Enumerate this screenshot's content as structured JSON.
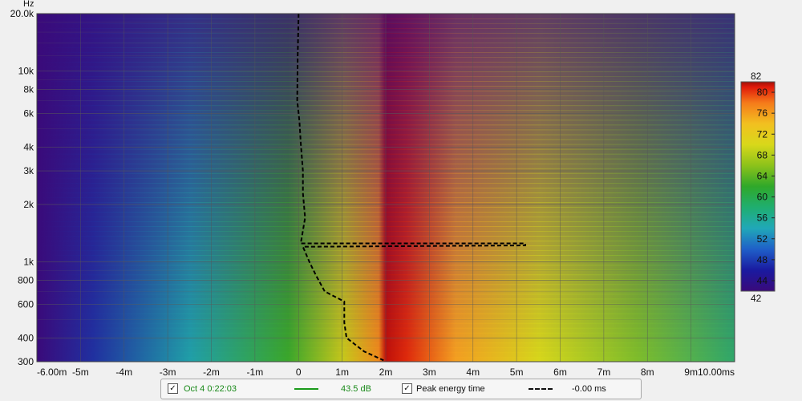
{
  "chart_data": {
    "type": "heatmap",
    "title": "",
    "x_unit": "ms",
    "y_unit": "Hz",
    "xlim": [
      -6.0,
      10.0
    ],
    "ylim_hz": [
      300,
      20000
    ],
    "y_scale": "log",
    "x_tick_labels": [
      "-6.00m",
      "-5m",
      "-4m",
      "-3m",
      "-2m",
      "-1m",
      "0",
      "1m",
      "2m",
      "3m",
      "4m",
      "5m",
      "6m",
      "7m",
      "8m",
      "9m",
      "10.00ms"
    ],
    "x_tick_values": [
      -6,
      -5,
      -4,
      -3,
      -2,
      -1,
      0,
      1,
      2,
      3,
      4,
      5,
      6,
      7,
      8,
      9,
      10
    ],
    "y_tick_labels": [
      "20.0k",
      "10k",
      "8k",
      "6k",
      "4k",
      "3k",
      "2k",
      "1k",
      "800",
      "600",
      "400",
      "300"
    ],
    "y_tick_values": [
      20000,
      10000,
      8000,
      6000,
      4000,
      3000,
      2000,
      1000,
      800,
      600,
      400,
      300
    ],
    "grid": true,
    "colorbar": {
      "min": 42,
      "max": 82,
      "min_label": "42",
      "max_label": "82",
      "tick_labels": [
        "80",
        "76",
        "72",
        "68",
        "64",
        "60",
        "56",
        "52",
        "48",
        "44"
      ],
      "tick_values": [
        80,
        76,
        72,
        68,
        64,
        60,
        56,
        52,
        48,
        44
      ]
    },
    "series": [
      {
        "name": "Peak energy time",
        "style": "dashed",
        "color": "#000000",
        "points": [
          [
            0.0,
            20000
          ],
          [
            -0.02,
            12000
          ],
          [
            -0.03,
            7000
          ],
          [
            0.02,
            5500
          ],
          [
            0.05,
            4200
          ],
          [
            0.1,
            3000
          ],
          [
            0.1,
            2300
          ],
          [
            0.15,
            1700
          ],
          [
            0.05,
            1250
          ],
          [
            5.2,
            1250
          ],
          [
            5.2,
            1220
          ],
          [
            0.1,
            1200
          ],
          [
            0.25,
            1000
          ],
          [
            0.4,
            850
          ],
          [
            0.6,
            700
          ],
          [
            1.05,
            620
          ],
          [
            1.05,
            480
          ],
          [
            1.1,
            400
          ],
          [
            1.5,
            340
          ],
          [
            1.95,
            305
          ]
        ]
      }
    ],
    "legend": {
      "item1_label": "Oct 4 0:22:03",
      "item1_color": "#1a9a1a",
      "item1_value": "43.5 dB",
      "item2_label": "Peak energy time",
      "item2_value": "-0.00 ms"
    }
  }
}
